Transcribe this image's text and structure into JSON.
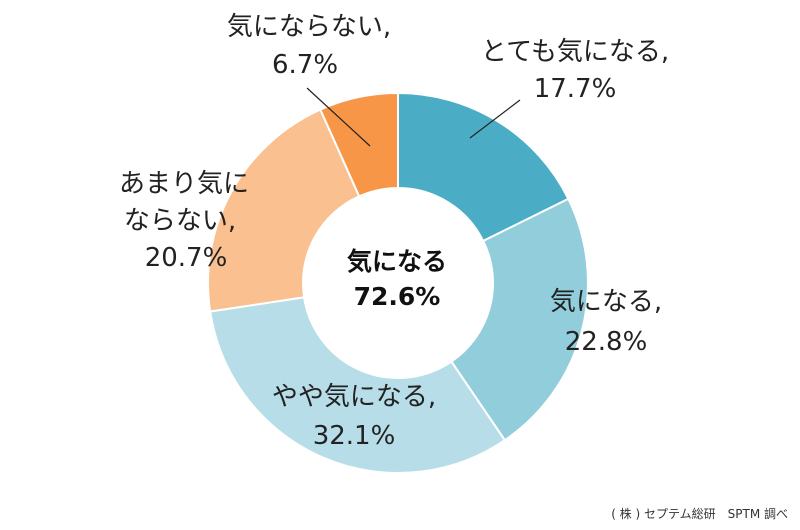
{
  "chart_data": {
    "type": "pie",
    "slices": [
      {
        "label": "とても気になる,",
        "value": 17.7,
        "value_text": "17.7%",
        "color": "#4bacc6"
      },
      {
        "label": "気になる,",
        "value": 22.8,
        "value_text": "22.8%",
        "color": "#92cddc"
      },
      {
        "label": "やや気になる,",
        "value": 32.1,
        "value_text": "32.1%",
        "color": "#b7dee8"
      },
      {
        "label_lines": [
          "あまり気に",
          "ならない,"
        ],
        "value": 20.7,
        "value_text": "20.7%",
        "color": "#fac090"
      },
      {
        "label": "気にならない,",
        "value": 6.7,
        "value_text": "6.7%",
        "color": "#f79646"
      }
    ],
    "center": {
      "title": "気になる",
      "value": "72.6%"
    }
  },
  "source": "( 株 ) セプテム総研　SPTM 調べ"
}
